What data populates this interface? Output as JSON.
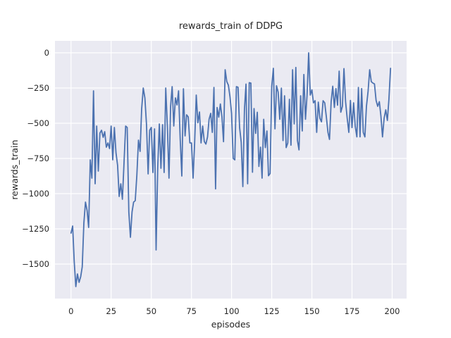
{
  "figure": {
    "title": "rewards_train of DDPG",
    "background_color": "#ffffff",
    "axes_background_color": "#eaeaf2",
    "grid_color": "#ffffff",
    "text_color": "#262626"
  },
  "chart_data": {
    "type": "line",
    "title": "rewards_train of DDPG",
    "xlabel": "episodes",
    "ylabel": "rewards_train",
    "xlim": [
      -10,
      209
    ],
    "ylim": [
      -1745,
      85
    ],
    "grid": true,
    "legend_position": "none",
    "xticks": [
      0,
      25,
      50,
      75,
      100,
      125,
      150,
      175,
      200
    ],
    "xtick_labels": [
      "0",
      "25",
      "50",
      "75",
      "100",
      "125",
      "150",
      "175",
      "200"
    ],
    "yticks": [
      0,
      -250,
      -500,
      -750,
      -1000,
      -1250,
      -1500
    ],
    "ytick_labels": [
      "0",
      "−250",
      "−500",
      "−750",
      "−1000",
      "−1250",
      "−1500"
    ],
    "series": [
      {
        "name": "rewards_train",
        "color": "#4c72b0",
        "line_width": 1.8,
        "x_start": 0,
        "x_step": 1,
        "values": [
          -1280,
          -1230,
          -1480,
          -1660,
          -1570,
          -1630,
          -1590,
          -1520,
          -1210,
          -1060,
          -1120,
          -1240,
          -760,
          -890,
          -270,
          -930,
          -520,
          -840,
          -570,
          -550,
          -600,
          -560,
          -670,
          -640,
          -680,
          -520,
          -760,
          -530,
          -710,
          -800,
          -1020,
          -930,
          -1040,
          -780,
          -520,
          -530,
          -1130,
          -1310,
          -1130,
          -1060,
          -1050,
          -870,
          -620,
          -700,
          -400,
          -250,
          -320,
          -510,
          -860,
          -550,
          -530,
          -850,
          -540,
          -1400,
          -820,
          -505,
          -820,
          -510,
          -850,
          -250,
          -520,
          -890,
          -380,
          -240,
          -520,
          -320,
          -370,
          -270,
          -610,
          -875,
          -255,
          -590,
          -440,
          -455,
          -640,
          -640,
          -890,
          -640,
          -300,
          -497,
          -420,
          -640,
          -520,
          -630,
          -648,
          -597,
          -472,
          -430,
          -565,
          -246,
          -966,
          -388,
          -457,
          -363,
          -457,
          -631,
          -120,
          -204,
          -230,
          -313,
          -430,
          -750,
          -760,
          -240,
          -245,
          -530,
          -635,
          -950,
          -400,
          -222,
          -930,
          -212,
          -215,
          -848,
          -396,
          -572,
          -422,
          -807,
          -670,
          -890,
          -472,
          -673,
          -555,
          -873,
          -857,
          -240,
          -110,
          -540,
          -234,
          -280,
          -472,
          -251,
          -623,
          -305,
          -673,
          -640,
          -330,
          -656,
          -120,
          -505,
          -104,
          -623,
          -689,
          -305,
          -555,
          -154,
          -472,
          -305,
          0,
          -300,
          -263,
          -355,
          -340,
          -565,
          -350,
          -465,
          -490,
          -340,
          -355,
          -455,
          -565,
          -615,
          -347,
          -237,
          -388,
          -254,
          -372,
          -130,
          -422,
          -380,
          -112,
          -347,
          -465,
          -565,
          -338,
          -531,
          -355,
          -522,
          -597,
          -246,
          -597,
          -254,
          -565,
          -597,
          -380,
          -275,
          -120,
          -205,
          -215,
          -221,
          -338,
          -380,
          -347,
          -447,
          -597,
          -464,
          -405,
          -480,
          -330,
          -110
        ]
      }
    ]
  }
}
